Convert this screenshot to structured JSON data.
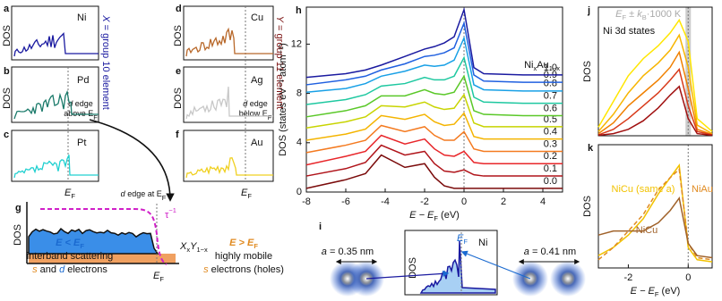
{
  "chart_data": [
    {
      "type": "line",
      "panel": "h",
      "ylabel": "DOS (states eV⁻¹ atom⁻¹)",
      "xlabel": [
        "E − E",
        "F",
        " (eV)"
      ],
      "legend_title": [
        "Ni",
        "x",
        "Au",
        "1−x"
      ],
      "x": [
        -8,
        -6,
        -5,
        -4.2,
        -3,
        -2,
        -1.5,
        -1,
        -0.5,
        0,
        0.5,
        1,
        3,
        5
      ],
      "xlim": [
        -8,
        5
      ],
      "xticks": [
        -8,
        -6,
        -4,
        -2,
        0,
        2,
        4
      ],
      "ylim": [
        0,
        15
      ],
      "yticks": [
        0,
        4,
        8,
        12
      ],
      "series": [
        {
          "name": "0.0",
          "color": "#7a0a0a",
          "values": [
            0.3,
            1.0,
            1.5,
            3.0,
            2.0,
            2.3,
            1.2,
            0.5,
            0.3,
            0.3,
            0.3,
            0.3,
            0.3,
            0.3
          ]
        },
        {
          "name": "0.1",
          "color": "#b0141a",
          "values": [
            1.3,
            1.9,
            2.4,
            3.8,
            3.0,
            3.3,
            2.3,
            1.7,
            1.6,
            1.8,
            1.4,
            1.3,
            1.3,
            1.3
          ]
        },
        {
          "name": "0.2",
          "color": "#e8262a",
          "values": [
            2.2,
            2.9,
            3.3,
            4.6,
            3.9,
            4.3,
            3.5,
            3.0,
            2.9,
            3.3,
            2.4,
            2.3,
            2.3,
            2.3
          ]
        },
        {
          "name": "0.3",
          "color": "#f47a20",
          "values": [
            3.2,
            3.8,
            4.2,
            5.4,
            4.9,
            5.3,
            4.6,
            4.2,
            4.2,
            4.9,
            3.5,
            3.3,
            3.3,
            3.3
          ]
        },
        {
          "name": "0.4",
          "color": "#f4b400",
          "values": [
            4.2,
            4.7,
            5.1,
            6.2,
            5.9,
            6.3,
            5.7,
            5.4,
            5.5,
            6.4,
            4.5,
            4.3,
            4.3,
            4.3
          ]
        },
        {
          "name": "0.5",
          "color": "#c8d400",
          "values": [
            5.2,
            5.7,
            6.1,
            7.0,
            6.9,
            7.3,
            6.9,
            6.7,
            6.8,
            7.9,
            5.6,
            5.3,
            5.3,
            5.3
          ]
        },
        {
          "name": "0.6",
          "color": "#5ac828",
          "values": [
            6.1,
            6.6,
            7.0,
            7.8,
            7.8,
            8.3,
            8.0,
            7.9,
            8.1,
            9.4,
            6.6,
            6.3,
            6.2,
            6.2
          ]
        },
        {
          "name": "0.7",
          "color": "#1ec8a0",
          "values": [
            7.1,
            7.5,
            7.9,
            8.6,
            8.8,
            9.3,
            9.1,
            9.1,
            9.4,
            10.9,
            7.7,
            7.3,
            7.2,
            7.2
          ]
        },
        {
          "name": "0.8",
          "color": "#18a0e6",
          "values": [
            8.1,
            8.4,
            8.8,
            9.4,
            9.8,
            10.3,
            10.2,
            10.3,
            10.7,
            12.5,
            8.7,
            8.3,
            8.2,
            8.2
          ]
        },
        {
          "name": "0.9",
          "color": "#2060e0",
          "values": [
            8.7,
            9.1,
            9.4,
            9.9,
            10.4,
            11.0,
            11.1,
            11.3,
            11.7,
            13.7,
            9.5,
            9.0,
            8.9,
            8.9
          ]
        },
        {
          "name": "1.0",
          "color": "#1a1aa0",
          "values": [
            9.3,
            9.6,
            9.9,
            10.3,
            11.0,
            11.6,
            11.8,
            12.1,
            12.6,
            14.8,
            10.1,
            9.6,
            9.5,
            9.5
          ]
        }
      ]
    },
    {
      "type": "line",
      "panel": "j",
      "ylabel": "DOS",
      "annotation": "Ni 3d states",
      "band_label": [
        "E",
        "F",
        " ± k",
        "B",
        "·1000 K"
      ],
      "x": [
        -3,
        -2.5,
        -2,
        -1.5,
        -1,
        -0.6,
        -0.3,
        0,
        0.3,
        0.8
      ],
      "xlim": [
        -3,
        0.8
      ],
      "ylim": [
        0,
        3
      ],
      "series": [
        {
          "color": "#ffe600",
          "values": [
            0.2,
            0.8,
            1.4,
            1.8,
            2.1,
            2.4,
            2.7,
            2.2,
            0.4,
            0.1
          ]
        },
        {
          "color": "#f7b500",
          "values": [
            0.1,
            0.5,
            1.0,
            1.4,
            1.7,
            2.0,
            2.35,
            1.6,
            0.25,
            0.05
          ]
        },
        {
          "color": "#f08000",
          "values": [
            0.05,
            0.3,
            0.7,
            1.0,
            1.3,
            1.6,
            1.95,
            1.1,
            0.15,
            0.03
          ]
        },
        {
          "color": "#d83a1a",
          "values": [
            0.02,
            0.15,
            0.4,
            0.7,
            1.0,
            1.3,
            1.55,
            0.7,
            0.1,
            0.02
          ]
        },
        {
          "color": "#a01010",
          "values": [
            0.01,
            0.05,
            0.15,
            0.35,
            0.65,
            0.95,
            1.15,
            0.4,
            0.05,
            0.01
          ]
        }
      ]
    },
    {
      "type": "line",
      "panel": "k",
      "ylabel": "DOS",
      "xlabel": [
        "E − E",
        "F",
        " (eV)"
      ],
      "x": [
        -3,
        -2.5,
        -2,
        -1.5,
        -1,
        -0.6,
        -0.3,
        0,
        0.3,
        0.8
      ],
      "xlim": [
        -3,
        0.8
      ],
      "xticks": [
        -2,
        0
      ],
      "ylim": [
        0,
        3
      ],
      "series": [
        {
          "name": "NiCu (same a)",
          "color": "#f2c200",
          "values": [
            0.3,
            0.5,
            0.8,
            1.2,
            1.8,
            2.2,
            2.5,
            0.5,
            0.2,
            0.15
          ]
        },
        {
          "name": "NiAu",
          "color": "#e08a20",
          "dash": true,
          "values": [
            0.2,
            0.5,
            0.9,
            1.3,
            1.9,
            2.2,
            2.4,
            0.6,
            0.25,
            0.2
          ]
        },
        {
          "name": "NiCu",
          "color": "#a0622a",
          "values": [
            0.8,
            0.9,
            0.9,
            0.9,
            1.1,
            1.4,
            1.7,
            0.6,
            0.3,
            0.25
          ]
        }
      ]
    }
  ],
  "schematics": {
    "panel_labels": [
      "a",
      "b",
      "c",
      "d",
      "e",
      "f",
      "g",
      "i"
    ],
    "dos": "DOS",
    "group10": [
      "X",
      " = group 10 element"
    ],
    "group11": [
      "Y",
      " = group 11 element"
    ],
    "elements": [
      "Ni",
      "Pd",
      "Pt",
      "Cu",
      "Ag",
      "Au"
    ],
    "ef": [
      "E",
      "F"
    ],
    "edge_above": [
      "d",
      " edge",
      "above E",
      "F"
    ],
    "edge_below": [
      "d",
      " edge",
      "below E",
      "F"
    ],
    "g": {
      "edge_at": [
        "d",
        " edge at E",
        "F"
      ],
      "tau": [
        "τ",
        "−1"
      ],
      "alloy": [
        "X",
        "x",
        "Y",
        "1−x"
      ],
      "left_title": [
        "E < E",
        "F"
      ],
      "left_1": "interband scattering",
      "left_2": [
        "s",
        " and ",
        "d",
        " electrons"
      ],
      "right_title": [
        "E > E",
        "F"
      ],
      "right_1": "highly mobile",
      "right_2": [
        "s",
        " electrons (holes)"
      ]
    },
    "i": {
      "a_small": [
        "a",
        " = 0.35 nm"
      ],
      "a_large": [
        "a",
        " = 0.41 nm"
      ],
      "element": "Ni"
    }
  }
}
